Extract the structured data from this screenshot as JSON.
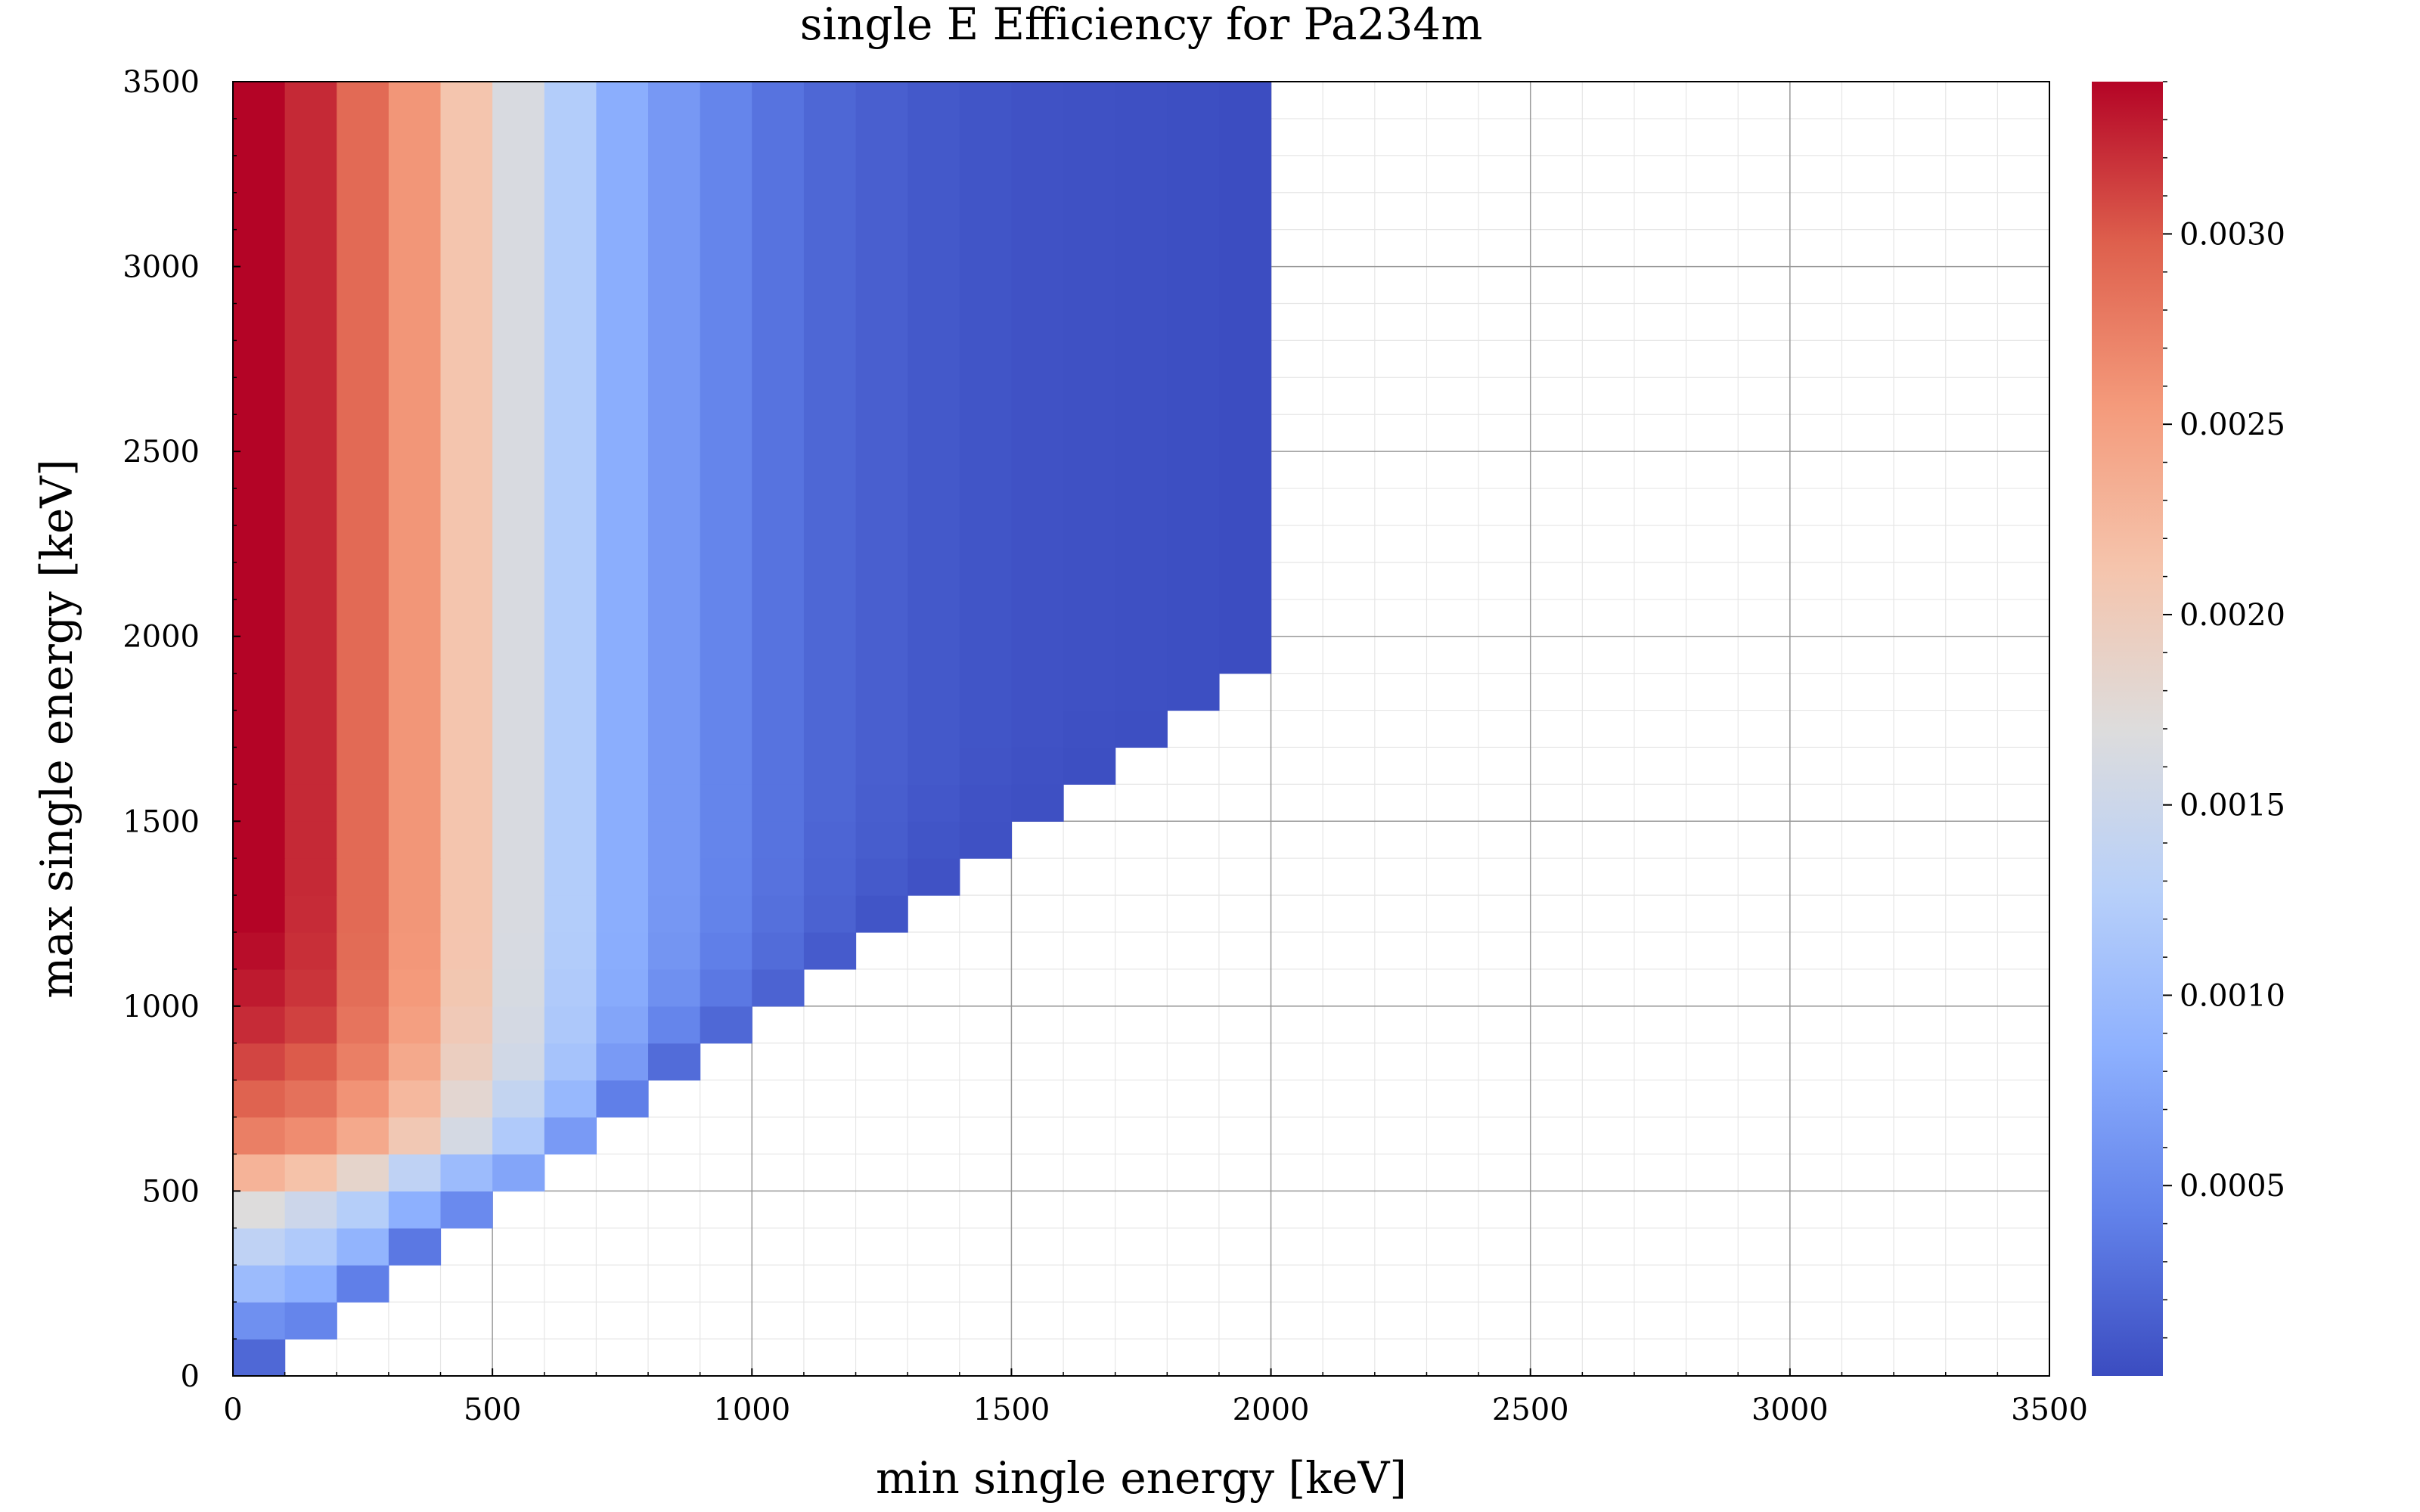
{
  "chart_data": {
    "type": "heatmap",
    "title": "single E Efficiency for Pa234m",
    "xlabel": "min single energy [keV]",
    "ylabel": "max single energy [keV]",
    "xlim": [
      0,
      3500
    ],
    "ylim": [
      0,
      3500
    ],
    "x_ticks": [
      "0",
      "500",
      "1000",
      "1500",
      "2000",
      "2500",
      "3000",
      "3500"
    ],
    "y_ticks": [
      "0",
      "500",
      "1000",
      "1500",
      "2000",
      "2500",
      "3000",
      "3500"
    ],
    "x_bin_edges": [
      0,
      100,
      200,
      300,
      400,
      500,
      600,
      700,
      800,
      900,
      1000,
      1100,
      1200,
      1300,
      1400,
      1500,
      1600,
      1700,
      1800,
      1900,
      2000
    ],
    "y_bin_edges": [
      0,
      100,
      200,
      300,
      400,
      500,
      600,
      700,
      800,
      900,
      1000,
      1100,
      1200,
      1300,
      1400,
      1500,
      1600,
      1700,
      1800,
      1900,
      2000,
      3500
    ],
    "values": [
      [
        0.00022,
        null,
        null,
        null,
        null,
        null,
        null,
        null,
        null,
        null,
        null,
        null,
        null,
        null,
        null,
        null,
        null,
        null,
        null,
        null
      ],
      [
        0.00055,
        0.00045,
        null,
        null,
        null,
        null,
        null,
        null,
        null,
        null,
        null,
        null,
        null,
        null,
        null,
        null,
        null,
        null,
        null,
        null
      ],
      [
        0.001,
        0.00085,
        0.0004,
        null,
        null,
        null,
        null,
        null,
        null,
        null,
        null,
        null,
        null,
        null,
        null,
        null,
        null,
        null,
        null,
        null
      ],
      [
        0.00135,
        0.0012,
        0.0009,
        0.00035,
        null,
        null,
        null,
        null,
        null,
        null,
        null,
        null,
        null,
        null,
        null,
        null,
        null,
        null,
        null,
        null
      ],
      [
        0.0017,
        0.0015,
        0.00125,
        0.00085,
        0.0005,
        null,
        null,
        null,
        null,
        null,
        null,
        null,
        null,
        null,
        null,
        null,
        null,
        null,
        null,
        null
      ],
      [
        0.0023,
        0.00215,
        0.00185,
        0.00135,
        0.001,
        0.00075,
        null,
        null,
        null,
        null,
        null,
        null,
        null,
        null,
        null,
        null,
        null,
        null,
        null,
        null
      ],
      [
        0.00275,
        0.00265,
        0.0024,
        0.00205,
        0.0016,
        0.0012,
        0.00065,
        null,
        null,
        null,
        null,
        null,
        null,
        null,
        null,
        null,
        null,
        null,
        null,
        null
      ],
      [
        0.00295,
        0.00285,
        0.0026,
        0.00225,
        0.0018,
        0.0014,
        0.00095,
        0.0004,
        null,
        null,
        null,
        null,
        null,
        null,
        null,
        null,
        null,
        null,
        null,
        null
      ],
      [
        0.0031,
        0.003,
        0.00275,
        0.0024,
        0.00195,
        0.00155,
        0.0011,
        0.00065,
        0.00025,
        null,
        null,
        null,
        null,
        null,
        null,
        null,
        null,
        null,
        null,
        null
      ],
      [
        0.00322,
        0.00312,
        0.00283,
        0.0025,
        0.00203,
        0.0016,
        0.00117,
        0.00075,
        0.00045,
        0.00022,
        null,
        null,
        null,
        null,
        null,
        null,
        null,
        null,
        null,
        null
      ],
      [
        0.0033,
        0.00318,
        0.00287,
        0.00255,
        0.00208,
        0.00162,
        0.0012,
        0.0008,
        0.00055,
        0.00035,
        0.00018,
        null,
        null,
        null,
        null,
        null,
        null,
        null,
        null,
        null
      ],
      [
        0.00336,
        0.0032,
        0.00289,
        0.00257,
        0.0021,
        0.00163,
        0.00122,
        0.00082,
        0.0006,
        0.0004,
        0.00025,
        0.00012,
        null,
        null,
        null,
        null,
        null,
        null,
        null,
        null
      ],
      [
        0.0034,
        0.00322,
        0.0029,
        0.00258,
        0.00211,
        0.00164,
        0.00123,
        0.00083,
        0.00062,
        0.00043,
        0.00028,
        0.00017,
        7e-05,
        null,
        null,
        null,
        null,
        null,
        null,
        null
      ],
      [
        0.00342,
        0.00323,
        0.0029,
        0.00258,
        0.00211,
        0.00164,
        0.00123,
        0.00083,
        0.00063,
        0.00044,
        0.0003,
        0.00019,
        0.00011,
        5e-05,
        null,
        null,
        null,
        null,
        null,
        null
      ],
      [
        0.00342,
        0.00323,
        0.0029,
        0.00258,
        0.00211,
        0.00164,
        0.00123,
        0.00083,
        0.00063,
        0.00045,
        0.00031,
        0.0002,
        0.00013,
        7e-05,
        4e-05,
        null,
        null,
        null,
        null,
        null
      ],
      [
        0.00342,
        0.00323,
        0.0029,
        0.00258,
        0.00211,
        0.00164,
        0.00123,
        0.00083,
        0.00063,
        0.00045,
        0.00031,
        0.00021,
        0.00014,
        9e-05,
        5e-05,
        3e-05,
        null,
        null,
        null,
        null
      ],
      [
        0.00342,
        0.00323,
        0.0029,
        0.00258,
        0.00211,
        0.00164,
        0.00123,
        0.00083,
        0.00063,
        0.00045,
        0.00031,
        0.00021,
        0.00015,
        0.0001,
        6e-05,
        4e-05,
        2e-05,
        null,
        null,
        null
      ],
      [
        0.00342,
        0.00323,
        0.0029,
        0.00258,
        0.00211,
        0.00164,
        0.00123,
        0.00083,
        0.00063,
        0.00045,
        0.00031,
        0.00021,
        0.00015,
        0.0001,
        7e-05,
        5e-05,
        3e-05,
        2e-05,
        null,
        null
      ],
      [
        0.00342,
        0.00323,
        0.0029,
        0.00258,
        0.00211,
        0.00164,
        0.00123,
        0.00083,
        0.00063,
        0.00045,
        0.00031,
        0.00021,
        0.00015,
        0.0001,
        7e-05,
        5e-05,
        4e-05,
        3e-05,
        2e-05,
        null
      ],
      [
        0.00342,
        0.00323,
        0.0029,
        0.00258,
        0.00211,
        0.00164,
        0.00123,
        0.00083,
        0.00063,
        0.00045,
        0.00031,
        0.00021,
        0.00015,
        0.0001,
        7e-05,
        5e-05,
        4e-05,
        3e-05,
        2e-05,
        1e-05
      ],
      [
        0.00342,
        0.00323,
        0.0029,
        0.00258,
        0.00211,
        0.00164,
        0.00123,
        0.00083,
        0.00063,
        0.00045,
        0.00031,
        0.00021,
        0.00015,
        0.0001,
        7e-05,
        5e-05,
        4e-05,
        3e-05,
        2e-05,
        1e-05
      ]
    ],
    "colorbar": {
      "min": 0.0,
      "max": 0.0034,
      "ticks": [
        0.0005,
        0.001,
        0.0015,
        0.002,
        0.0025,
        0.003
      ],
      "tick_labels": [
        "0.0005",
        "0.0010",
        "0.0015",
        "0.0020",
        "0.0025",
        "0.0030"
      ],
      "colormap": "coolwarm"
    },
    "grid": true,
    "colors": {
      "grid_major": "#999999",
      "grid_minor": "#e6e6e6",
      "frame": "#000000",
      "coolwarm_stops": [
        "#3b4cc0",
        "#6282ea",
        "#8db0fe",
        "#b8d0f9",
        "#dddcdc",
        "#f5c4ac",
        "#f49a7b",
        "#de604d",
        "#b40426"
      ]
    }
  }
}
